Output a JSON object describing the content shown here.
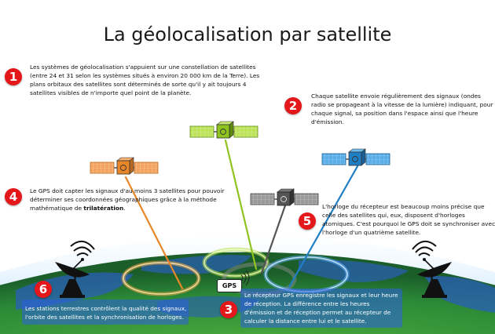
{
  "title": "La géolocalisation par satellite",
  "badges": [
    "1",
    "2",
    "3",
    "4",
    "5",
    "6"
  ],
  "texts": {
    "t1": "Les systèmes de géolocalisation s'appuient sur une constellation de satellites (entre 24 et 31 selon les systèmes situés à environ 20 000 km de la Terre). Les plans orbitaux des satellites sont déterminés de sorte qu'il y ait toujours 4 satellites visibles de n'importe quel point de la planète.",
    "t2": "Chaque satellite envoie régulièrement des signaux (ondes radio se propageant à la vitesse de la lumière) indiquant, pour chaque signal, sa position dans l'espace ainsi que l'heure d'émission.",
    "t3": "Le récepteur GPS enregistre les signaux et leur heure de réception. La différence entre les heures d'émission et de réception permet au récepteur de calculer la distance entre lui et le satellite.",
    "t4_before": "Le GPS doit capter les signaux d'au moins 3 satellites pour pouvoir déterminer ses coordonnées géographiques grâce à la méthode mathématique de ",
    "t4_bold": "trilatération",
    "t4_after": ".",
    "t5": "L'horloge du récepteur est beaucoup moins précise que celle des satellites qui, eux, disposent d'horloges atomiques. C'est pourquoi le GPS doit se synchroniser avec l'horloge d'un quatrième satellite.",
    "t6": "Les stations terrestres contrôlent la qualité des signaux, l'orbite des satellites et la synchronisation de horloges."
  },
  "gps_label": "GPS",
  "colors": {
    "badge": "#e4171b",
    "sat_orange": "#e8862a",
    "sat_green": "#8fc31f",
    "sat_gray": "#555555",
    "sat_blue": "#1f7fc4",
    "earth_green": "#2e8b3a",
    "ocean": "#2a5fb8",
    "panel": "#3d6be0"
  },
  "icons": [
    "satellite-icon",
    "gps-receiver-icon",
    "ground-station-antenna-icon"
  ]
}
